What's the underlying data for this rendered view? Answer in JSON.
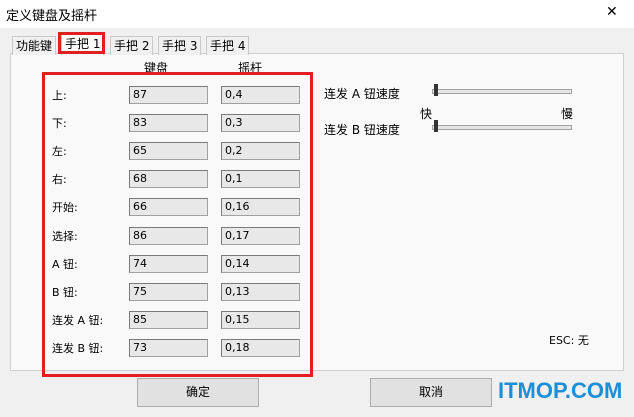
{
  "window": {
    "title": "定义键盘及摇杆",
    "close": "✕"
  },
  "tabs": [
    "功能键",
    "手把 1",
    "手把 2",
    "手把 3",
    "手把 4"
  ],
  "columns": {
    "keyboard": "键盘",
    "joystick": "摇杆"
  },
  "rows": [
    {
      "label": "上:",
      "keyboard": "87",
      "joystick": "0,4"
    },
    {
      "label": "下:",
      "keyboard": "83",
      "joystick": "0,3"
    },
    {
      "label": "左:",
      "keyboard": "65",
      "joystick": "0,2"
    },
    {
      "label": "右:",
      "keyboard": "68",
      "joystick": "0,1"
    },
    {
      "label": "开始:",
      "keyboard": "66",
      "joystick": "0,16"
    },
    {
      "label": "选择:",
      "keyboard": "86",
      "joystick": "0,17"
    },
    {
      "label": "A 钮:",
      "keyboard": "74",
      "joystick": "0,14"
    },
    {
      "label": "B 钮:",
      "keyboard": "75",
      "joystick": "0,13"
    },
    {
      "label": "连发 A 钮:",
      "keyboard": "85",
      "joystick": "0,15"
    },
    {
      "label": "连发 B 钮:",
      "keyboard": "73",
      "joystick": "0,18"
    }
  ],
  "sliders": {
    "a_label": "连发 A 钮速度",
    "b_label": "连发 B 钮速度",
    "fast": "快",
    "slow": "慢"
  },
  "esc": "ESC: 无",
  "buttons": {
    "ok": "确定",
    "cancel": "取消"
  },
  "watermark": "ITMOP.COM"
}
